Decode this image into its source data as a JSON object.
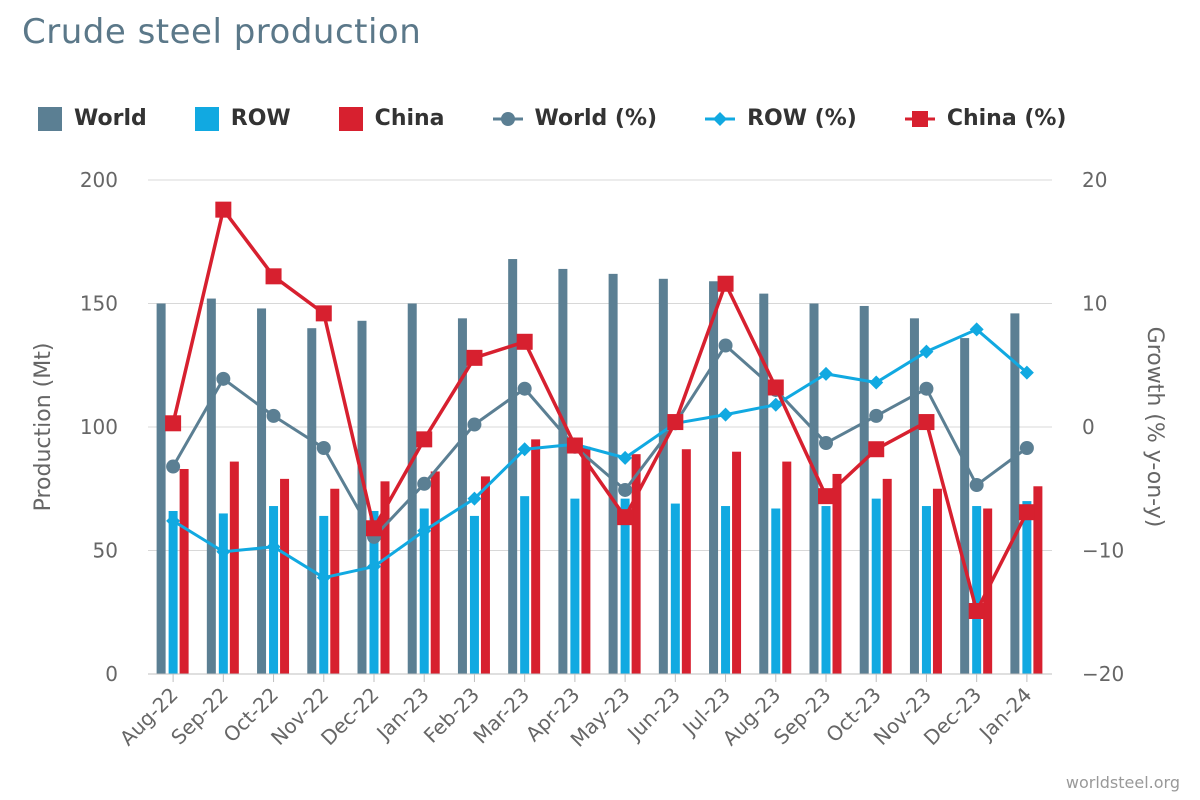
{
  "title": "Crude steel production",
  "credit": "worldsteel.org",
  "chart_data": {
    "type": "bar",
    "categories": [
      "Aug-22",
      "Sep-22",
      "Oct-22",
      "Nov-22",
      "Dec-22",
      "Jan-23",
      "Feb-23",
      "Mar-23",
      "Apr-23",
      "May-23",
      "Jun-23",
      "Jul-23",
      "Aug-23",
      "Sep-23",
      "Oct-23",
      "Nov-23",
      "Dec-23",
      "Jan-24"
    ],
    "ylabel": "Production (Mt)",
    "y2label": "Growth (% y-on-y)",
    "ylim": [
      0,
      200
    ],
    "y2lim": [
      -20,
      20
    ],
    "yticks": [
      "0",
      "50",
      "100",
      "150",
      "200"
    ],
    "y2ticks": [
      "−20",
      "−10",
      "0",
      "10",
      "20"
    ],
    "grid": true,
    "legend_position": "top",
    "bar_series": [
      {
        "name": "World",
        "color": "#5b7f93",
        "values": [
          150,
          152,
          148,
          140,
          143,
          150,
          144,
          168,
          164,
          162,
          160,
          159,
          154,
          150,
          149,
          144,
          136,
          146
        ]
      },
      {
        "name": "ROW",
        "color": "#11a9e1",
        "values": [
          66,
          65,
          68,
          64,
          66,
          67,
          64,
          72,
          71,
          71,
          69,
          68,
          67,
          68,
          71,
          68,
          68,
          70
        ]
      },
      {
        "name": "China",
        "color": "#d7202f",
        "values": [
          83,
          86,
          79,
          75,
          78,
          82,
          80,
          95,
          92,
          89,
          91,
          90,
          86,
          81,
          79,
          75,
          67,
          76
        ]
      }
    ],
    "line_series": [
      {
        "name": "World (%)",
        "color": "#5b7f93",
        "marker": "circle",
        "values": [
          -3.2,
          3.9,
          0.9,
          -1.7,
          -8.9,
          -4.6,
          0.2,
          3.1,
          -1.6,
          -5.1,
          0.3,
          6.6,
          3.0,
          -1.3,
          0.9,
          3.1,
          -4.7,
          -1.7
        ]
      },
      {
        "name": "ROW (%)",
        "color": "#11a9e1",
        "marker": "diamond",
        "values": [
          -7.6,
          -10.1,
          -9.7,
          -12.2,
          -11.3,
          -8.4,
          -5.8,
          -1.8,
          -1.4,
          -2.5,
          0.3,
          1.0,
          1.8,
          4.3,
          3.6,
          6.1,
          7.9,
          4.4
        ]
      },
      {
        "name": "China (%)",
        "color": "#d7202f",
        "marker": "square",
        "values": [
          0.3,
          17.6,
          12.2,
          9.2,
          -8.2,
          -1.0,
          5.6,
          6.9,
          -1.5,
          -7.3,
          0.4,
          11.6,
          3.2,
          -5.6,
          -1.8,
          0.4,
          -14.9,
          -6.9
        ]
      }
    ]
  }
}
